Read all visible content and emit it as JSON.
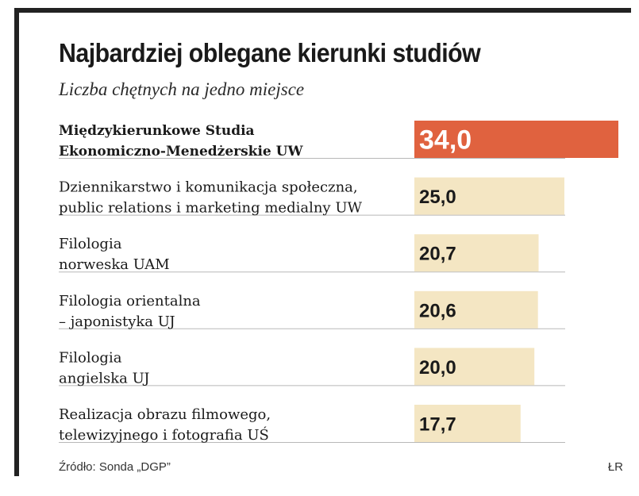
{
  "header": {
    "title": "Najbardziej oblegane kierunki studiów",
    "subtitle": "Liczba chętnych na jedno miejsce"
  },
  "footer": {
    "source": "Źródło: Sonda „DGP”",
    "credit": "ŁR"
  },
  "colors": {
    "highlight_bar": "#e0623f",
    "bar": "#f4e6c3",
    "highlight_value_text": "#ffffff",
    "value_text": "#1a1a1a",
    "divider": "#b8b8b8"
  },
  "chart_data": {
    "type": "bar",
    "orientation": "horizontal",
    "categories": [
      [
        "Międzykierunkowe Studia",
        "Ekonomiczno-Menedżerskie UW"
      ],
      [
        "Dziennikarstwo i komunikacja społeczna,",
        "public relations i marketing medialny UW"
      ],
      [
        "Filologia",
        "norweska UAM"
      ],
      [
        "Filologia orientalna",
        "– japonistyka UJ"
      ],
      [
        "Filologia",
        "angielska UJ"
      ],
      [
        "Realizacja obrazu filmowego,",
        "telewizyjnego i fotografia UŚ"
      ]
    ],
    "values": [
      34.0,
      25.0,
      20.7,
      20.6,
      20.0,
      17.7
    ],
    "value_labels": [
      "34,0",
      "25,0",
      "20,7",
      "20,6",
      "20,0",
      "17,7"
    ],
    "highlighted_index": 0,
    "xlim": [
      0,
      34.0
    ]
  }
}
